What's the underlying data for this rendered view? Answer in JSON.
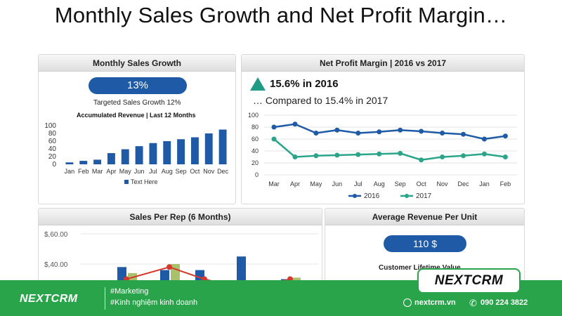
{
  "title": "Monthly Sales Growth and Net Profit Margin…",
  "panels": {
    "sales_growth": {
      "title": "Monthly Sales Growth",
      "value": "13%",
      "targeted": "Targeted Sales Growth  12%",
      "chart_title": "Accumulated Revenue | Last 12 Months"
    },
    "net_profit": {
      "title": "Net Profit Margin | 2016 vs 2017",
      "headline": "15.6% in 2016",
      "compare": "… Compared to 15.4% in 2017"
    },
    "sales_per_rep": {
      "title": "Sales Per Rep (6 Months)"
    },
    "avg_revenue": {
      "title": "Average Revenue Per Unit",
      "value": "110 $",
      "sub": "Customer  Lifetime Value"
    }
  },
  "chart_data": [
    {
      "type": "bar",
      "title": "Accumulated Revenue | Last 12 Months",
      "categories": [
        "Jan",
        "Feb",
        "Mar",
        "Apr",
        "May",
        "Jun",
        "Jul",
        "Aug",
        "Sep",
        "Oct",
        "Nov",
        "Dec"
      ],
      "series": [
        {
          "name": "Text Here",
          "values": [
            5,
            9,
            12,
            29,
            39,
            47,
            55,
            60,
            65,
            70,
            80,
            90
          ],
          "color": "#1f5aa6"
        }
      ],
      "yticks": [
        0,
        20,
        40,
        60,
        80,
        100
      ],
      "ylim": [
        0,
        100
      ],
      "legend": "bottom"
    },
    {
      "type": "line",
      "categories": [
        "Mar",
        "Apr",
        "May",
        "Jun",
        "Jul",
        "Aug",
        "Sep",
        "Oct",
        "Nov",
        "Dec",
        "Jan",
        "Feb"
      ],
      "series": [
        {
          "name": "2016",
          "values": [
            80,
            85,
            70,
            75,
            70,
            72,
            75,
            73,
            70,
            68,
            60,
            65
          ],
          "color": "#1f5aa6"
        },
        {
          "name": "2017",
          "values": [
            60,
            30,
            32,
            33,
            34,
            35,
            36,
            25,
            30,
            32,
            35,
            30
          ],
          "color": "#2aa58a"
        }
      ],
      "yticks": [
        0,
        20,
        40,
        60,
        80,
        100
      ],
      "ylim": [
        0,
        100
      ],
      "legend": "bottom"
    },
    {
      "type": "bar",
      "title": "Sales Per Rep (6 Months)",
      "yticks": [
        "$,40.00",
        "$,60.00"
      ],
      "ylim": [
        0,
        60
      ],
      "series": [
        {
          "name": "bar-blue",
          "values": [
            38,
            36,
            36,
            45,
            30
          ],
          "color": "#1f5aa6"
        },
        {
          "name": "bar-olive",
          "values": [
            34,
            40,
            27,
            23,
            31
          ],
          "color": "#a9c16b"
        },
        {
          "name": "line-red",
          "values": [
            30,
            38,
            30,
            23,
            30
          ],
          "color": "#d33a2c"
        }
      ],
      "visible_partially": true
    }
  ],
  "footer": {
    "brand": "NEXTCRM",
    "tag1": "#Marketing",
    "tag2": "#Kinh nghiệm kinh doanh",
    "logo_box": "NEXTCRM",
    "website": "nextcrm.vn",
    "phone": "090 224 3822"
  }
}
